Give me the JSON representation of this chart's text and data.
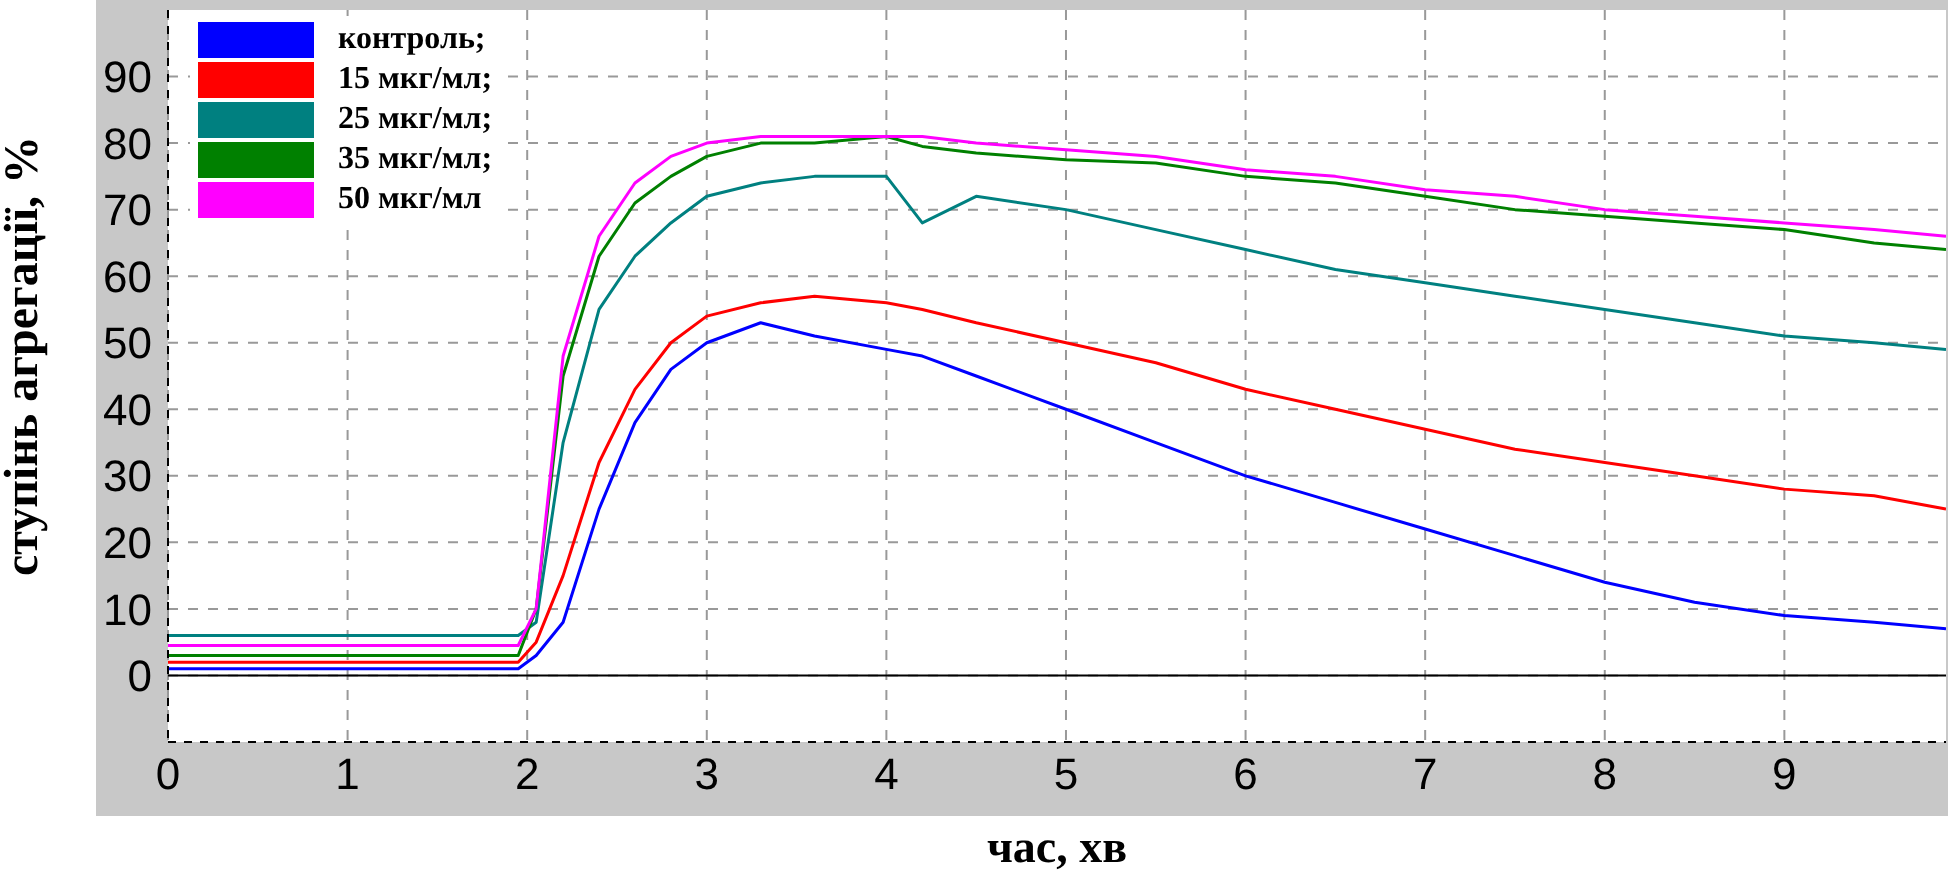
{
  "chart_data": {
    "type": "line",
    "xlabel": "час, хв",
    "ylabel": "ступінь агрегації, %",
    "x": [
      0,
      0.5,
      1,
      1.5,
      1.95,
      2.05,
      2.2,
      2.4,
      2.6,
      2.8,
      3,
      3.3,
      3.6,
      4,
      4.2,
      4.5,
      5,
      5.5,
      6,
      6.5,
      7,
      7.5,
      8,
      8.5,
      9,
      9.5,
      9.9
    ],
    "series": [
      {
        "name": "контроль;",
        "color": "#0000ff",
        "values": [
          1,
          1,
          1,
          1,
          1,
          3,
          8,
          25,
          38,
          46,
          50,
          53,
          51,
          49,
          48,
          45,
          40,
          35,
          30,
          26,
          22,
          18,
          14,
          11,
          9,
          8,
          7
        ]
      },
      {
        "name": "15 мкг/мл;",
        "color": "#ff0000",
        "values": [
          2,
          2,
          2,
          2,
          2,
          5,
          15,
          32,
          43,
          50,
          54,
          56,
          57,
          56,
          55,
          53,
          50,
          47,
          43,
          40,
          37,
          34,
          32,
          30,
          28,
          27,
          25
        ]
      },
      {
        "name": "25 мкг/мл;",
        "color": "#008080",
        "values": [
          6,
          6,
          6,
          6,
          6,
          8,
          35,
          55,
          63,
          68,
          72,
          74,
          75,
          75,
          68,
          72,
          70,
          67,
          64,
          61,
          59,
          57,
          55,
          53,
          51,
          50,
          49
        ]
      },
      {
        "name": "35 мкг/мл;",
        "color": "#008000",
        "values": [
          3,
          3,
          3,
          3,
          3,
          10,
          45,
          63,
          71,
          75,
          78,
          80,
          80,
          81,
          79.5,
          78.5,
          77.5,
          77,
          75,
          74,
          72,
          70,
          69,
          68,
          67,
          65,
          64
        ]
      },
      {
        "name": "50 мкг/мл",
        "color": "#ff00ff",
        "values": [
          4.5,
          4.5,
          4.5,
          4.5,
          4.5,
          10,
          48,
          66,
          74,
          78,
          80,
          81,
          81,
          81,
          81,
          80,
          79,
          78,
          76,
          75,
          73,
          72,
          70,
          69,
          68,
          67,
          66
        ]
      }
    ],
    "xlim": [
      0,
      9.9
    ],
    "xticks": [
      0,
      1,
      2,
      3,
      4,
      5,
      6,
      7,
      8,
      9
    ],
    "ylim": [
      -10,
      100
    ],
    "yticks": [
      0,
      10,
      20,
      30,
      40,
      50,
      60,
      70,
      80,
      90
    ],
    "ref_lines": [
      {
        "axis": "y",
        "value": 0,
        "color": "#000000",
        "line_style": "solid"
      }
    ],
    "grid": true,
    "legend": "top left",
    "marker": "none",
    "line_style": "solid"
  }
}
